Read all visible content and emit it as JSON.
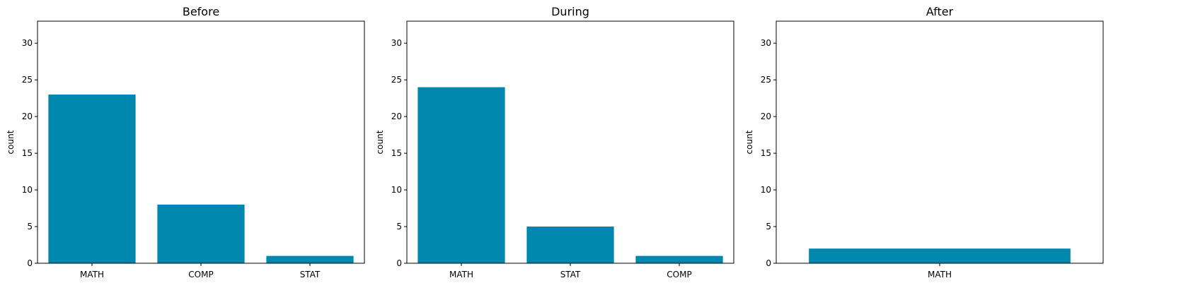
{
  "chart_data": [
    {
      "type": "bar",
      "title": "Before",
      "xlabel": "",
      "ylabel": "count",
      "categories": [
        "MATH",
        "COMP",
        "STAT"
      ],
      "values": [
        23,
        8,
        1
      ],
      "ylim": [
        0,
        33
      ],
      "yticks": [
        0,
        5,
        10,
        15,
        20,
        25,
        30
      ],
      "bar_color": "#0087ad",
      "grid": false
    },
    {
      "type": "bar",
      "title": "During",
      "xlabel": "",
      "ylabel": "count",
      "categories": [
        "MATH",
        "STAT",
        "COMP"
      ],
      "values": [
        24,
        5,
        1
      ],
      "ylim": [
        0,
        33
      ],
      "yticks": [
        0,
        5,
        10,
        15,
        20,
        25,
        30
      ],
      "bar_color": "#0087ad",
      "grid": false
    },
    {
      "type": "bar",
      "title": "After",
      "xlabel": "",
      "ylabel": "count",
      "categories": [
        "MATH"
      ],
      "values": [
        2
      ],
      "ylim": [
        0,
        33
      ],
      "yticks": [
        0,
        5,
        10,
        15,
        20,
        25,
        30
      ],
      "bar_color": "#0087ad",
      "grid": false
    }
  ]
}
